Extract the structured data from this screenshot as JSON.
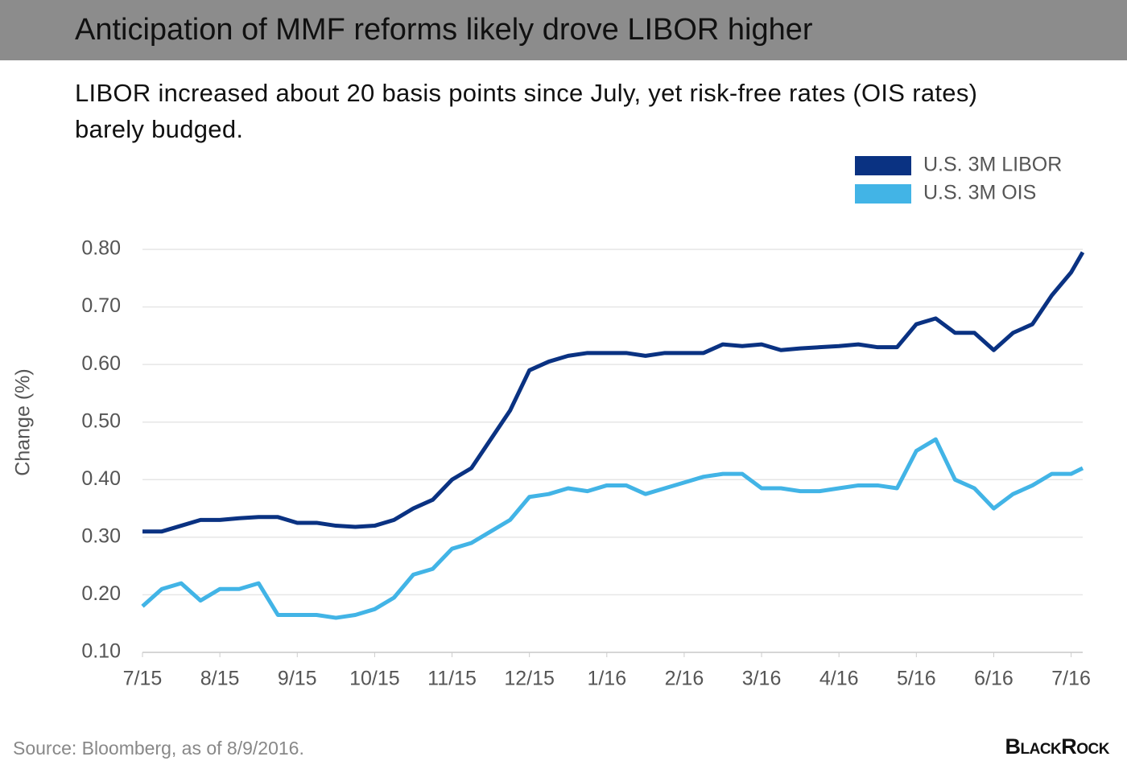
{
  "chart_data": {
    "type": "line",
    "title": "Anticipation of MMF reforms likely drove LIBOR higher",
    "subtitle": "LIBOR increased about 20 basis points since July, yet risk-free rates (OIS rates) barely budged.",
    "y_label": "Change (%)",
    "source": "Source: Bloomberg, as of 8/9/2016.",
    "brand": "BlackRock",
    "legend_position": "upper right",
    "grid": true,
    "xlim": [
      0,
      12.15
    ],
    "xticks": [
      {
        "value": 0,
        "label": "7/15"
      },
      {
        "value": 1,
        "label": "8/15"
      },
      {
        "value": 2,
        "label": "9/15"
      },
      {
        "value": 3,
        "label": "10/15"
      },
      {
        "value": 4,
        "label": "11/15"
      },
      {
        "value": 5,
        "label": "12/15"
      },
      {
        "value": 6,
        "label": "1/16"
      },
      {
        "value": 7,
        "label": "2/16"
      },
      {
        "value": 8,
        "label": "3/16"
      },
      {
        "value": 9,
        "label": "4/16"
      },
      {
        "value": 10,
        "label": "5/16"
      },
      {
        "value": 11,
        "label": "6/16"
      },
      {
        "value": 12,
        "label": "7/16"
      }
    ],
    "ylim": [
      0.1,
      0.8
    ],
    "yticks": [
      {
        "value": 0.1,
        "label": "0.10"
      },
      {
        "value": 0.2,
        "label": "0.20"
      },
      {
        "value": 0.3,
        "label": "0.30"
      },
      {
        "value": 0.4,
        "label": "0.40"
      },
      {
        "value": 0.5,
        "label": "0.50"
      },
      {
        "value": 0.6,
        "label": "0.60"
      },
      {
        "value": 0.7,
        "label": "0.70"
      },
      {
        "value": 0.8,
        "label": "0.80"
      }
    ],
    "x": [
      0,
      0.25,
      0.5,
      0.75,
      1,
      1.25,
      1.5,
      1.75,
      2,
      2.25,
      2.5,
      2.75,
      3,
      3.25,
      3.5,
      3.75,
      4,
      4.25,
      4.5,
      4.75,
      5,
      5.25,
      5.5,
      5.75,
      6,
      6.25,
      6.5,
      6.75,
      7,
      7.25,
      7.5,
      7.75,
      8,
      8.25,
      8.5,
      8.75,
      9,
      9.25,
      9.5,
      9.75,
      10,
      10.25,
      10.5,
      10.75,
      11,
      11.25,
      11.5,
      11.75,
      12,
      12.15
    ],
    "series": [
      {
        "name": "U.S. 3M LIBOR",
        "color": "#0a3282",
        "values": [
          0.31,
          0.31,
          0.32,
          0.33,
          0.33,
          0.333,
          0.335,
          0.335,
          0.325,
          0.325,
          0.32,
          0.318,
          0.32,
          0.33,
          0.35,
          0.365,
          0.4,
          0.42,
          0.47,
          0.52,
          0.59,
          0.605,
          0.615,
          0.62,
          0.62,
          0.62,
          0.615,
          0.62,
          0.62,
          0.62,
          0.635,
          0.632,
          0.635,
          0.625,
          0.628,
          0.63,
          0.632,
          0.635,
          0.63,
          0.63,
          0.67,
          0.68,
          0.655,
          0.655,
          0.625,
          0.655,
          0.67,
          0.72,
          0.76,
          0.795
        ]
      },
      {
        "name": "U.S. 3M OIS",
        "color": "#42b4e6",
        "values": [
          0.18,
          0.21,
          0.22,
          0.19,
          0.21,
          0.21,
          0.22,
          0.165,
          0.165,
          0.165,
          0.16,
          0.165,
          0.175,
          0.195,
          0.235,
          0.245,
          0.28,
          0.29,
          0.31,
          0.33,
          0.37,
          0.375,
          0.385,
          0.38,
          0.39,
          0.39,
          0.375,
          0.385,
          0.395,
          0.405,
          0.41,
          0.41,
          0.385,
          0.385,
          0.38,
          0.38,
          0.385,
          0.39,
          0.39,
          0.385,
          0.45,
          0.47,
          0.4,
          0.385,
          0.35,
          0.375,
          0.39,
          0.41,
          0.41,
          0.42
        ]
      }
    ]
  }
}
